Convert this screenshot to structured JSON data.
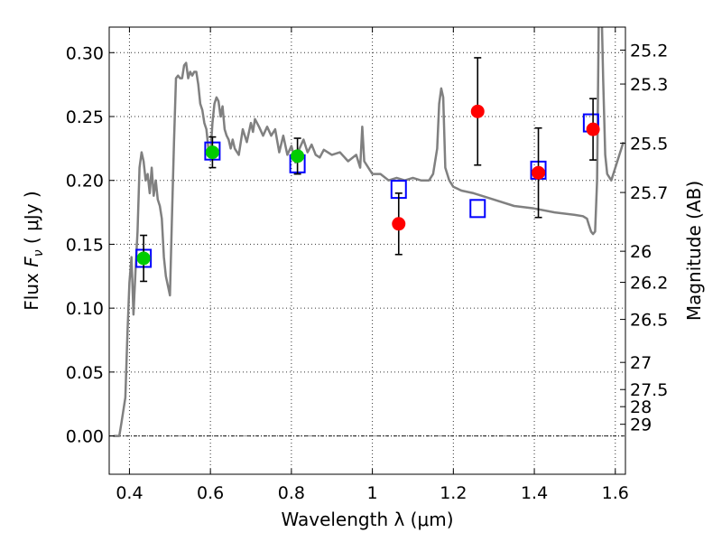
{
  "chart_data": {
    "type": "scatter",
    "xlabel": "Wavelength  λ (μm)",
    "ylabel_prefix": "Flux  ",
    "ylabel_symbol": "F",
    "ylabel_sub": "ν",
    "ylabel_suffix": "  ( μJy )",
    "y2label": "Magnitude (AB)",
    "xlim": [
      0.35,
      1.625
    ],
    "ylim": [
      -0.03,
      0.32
    ],
    "grid": true,
    "x_ticks": [
      {
        "value": 0.4,
        "label": "0.4"
      },
      {
        "value": 0.6,
        "label": "0.6"
      },
      {
        "value": 0.8,
        "label": "0.8"
      },
      {
        "value": 1.0,
        "label": "1"
      },
      {
        "value": 1.2,
        "label": "1.2"
      },
      {
        "value": 1.4,
        "label": "1.4"
      },
      {
        "value": 1.6,
        "label": "1.6"
      }
    ],
    "y_ticks": [
      {
        "value": 0.0,
        "label": "0.00"
      },
      {
        "value": 0.05,
        "label": "0.05"
      },
      {
        "value": 0.1,
        "label": "0.10"
      },
      {
        "value": 0.15,
        "label": "0.15"
      },
      {
        "value": 0.2,
        "label": "0.20"
      },
      {
        "value": 0.25,
        "label": "0.25"
      },
      {
        "value": 0.3,
        "label": "0.30"
      }
    ],
    "mag_ticks": [
      {
        "value": 25.2,
        "label": "25.2"
      },
      {
        "value": 25.3,
        "label": "25.3"
      },
      {
        "value": 25.5,
        "label": "25.5"
      },
      {
        "value": 25.7,
        "label": "25.7"
      },
      {
        "value": 26.0,
        "label": "26"
      },
      {
        "value": 26.2,
        "label": "26.2"
      },
      {
        "value": 26.5,
        "label": "26.5"
      },
      {
        "value": 27.0,
        "label": "27"
      },
      {
        "value": 27.5,
        "label": "27.5"
      },
      {
        "value": 28.0,
        "label": "28"
      },
      {
        "value": 29.0,
        "label": "29"
      }
    ],
    "series": [
      {
        "kind": "line",
        "color": "#808080",
        "x": [
          0.36,
          0.375,
          0.38,
          0.39,
          0.395,
          0.4,
          0.405,
          0.41,
          0.415,
          0.42,
          0.425,
          0.43,
          0.435,
          0.44,
          0.445,
          0.45,
          0.455,
          0.46,
          0.465,
          0.47,
          0.475,
          0.48,
          0.485,
          0.49,
          0.5,
          0.505,
          0.51,
          0.515,
          0.52,
          0.525,
          0.53,
          0.535,
          0.54,
          0.545,
          0.55,
          0.555,
          0.56,
          0.565,
          0.57,
          0.575,
          0.58,
          0.585,
          0.59,
          0.595,
          0.6,
          0.605,
          0.61,
          0.615,
          0.62,
          0.625,
          0.63,
          0.635,
          0.64,
          0.645,
          0.65,
          0.655,
          0.66,
          0.67,
          0.68,
          0.69,
          0.7,
          0.705,
          0.71,
          0.72,
          0.73,
          0.74,
          0.75,
          0.76,
          0.77,
          0.78,
          0.79,
          0.8,
          0.81,
          0.82,
          0.83,
          0.84,
          0.85,
          0.86,
          0.87,
          0.88,
          0.9,
          0.92,
          0.94,
          0.96,
          0.97,
          0.975,
          0.98,
          0.99,
          1.0,
          1.02,
          1.04,
          1.06,
          1.08,
          1.1,
          1.12,
          1.14,
          1.15,
          1.16,
          1.165,
          1.17,
          1.175,
          1.18,
          1.19,
          1.2,
          1.22,
          1.25,
          1.3,
          1.35,
          1.4,
          1.45,
          1.5,
          1.52,
          1.53,
          1.535,
          1.54,
          1.545,
          1.55,
          1.555,
          1.56,
          1.565,
          1.57,
          1.575,
          1.58,
          1.59,
          1.6,
          1.61,
          1.62
        ],
        "y": [
          0.0,
          0.0,
          0.01,
          0.03,
          0.08,
          0.12,
          0.14,
          0.095,
          0.13,
          0.16,
          0.21,
          0.222,
          0.215,
          0.2,
          0.205,
          0.19,
          0.21,
          0.188,
          0.2,
          0.185,
          0.18,
          0.17,
          0.14,
          0.125,
          0.11,
          0.17,
          0.23,
          0.28,
          0.282,
          0.28,
          0.28,
          0.29,
          0.292,
          0.28,
          0.285,
          0.282,
          0.285,
          0.285,
          0.275,
          0.26,
          0.255,
          0.245,
          0.24,
          0.225,
          0.22,
          0.245,
          0.26,
          0.265,
          0.262,
          0.25,
          0.258,
          0.24,
          0.235,
          0.232,
          0.225,
          0.232,
          0.225,
          0.22,
          0.24,
          0.23,
          0.245,
          0.238,
          0.248,
          0.242,
          0.235,
          0.242,
          0.235,
          0.24,
          0.222,
          0.235,
          0.22,
          0.227,
          0.214,
          0.225,
          0.232,
          0.222,
          0.228,
          0.22,
          0.218,
          0.224,
          0.22,
          0.222,
          0.215,
          0.22,
          0.21,
          0.242,
          0.215,
          0.21,
          0.205,
          0.205,
          0.2,
          0.202,
          0.2,
          0.202,
          0.2,
          0.2,
          0.205,
          0.225,
          0.26,
          0.272,
          0.265,
          0.21,
          0.2,
          0.195,
          0.192,
          0.19,
          0.185,
          0.18,
          0.178,
          0.175,
          0.173,
          0.172,
          0.17,
          0.165,
          0.16,
          0.158,
          0.16,
          0.2,
          0.35,
          0.35,
          0.28,
          0.22,
          0.205,
          0.2,
          0.21,
          0.22,
          0.23
        ]
      },
      {
        "kind": "model-box",
        "name": "",
        "color": "#0000ff",
        "x": [
          0.435,
          0.605,
          0.815,
          1.065,
          1.26,
          1.41,
          1.54
        ],
        "y": [
          0.139,
          0.223,
          0.213,
          0.193,
          0.178,
          0.208,
          0.245
        ]
      },
      {
        "kind": "points",
        "name": "",
        "color": "#00cc00",
        "x": [
          0.435,
          0.605,
          0.815
        ],
        "y": [
          0.139,
          0.222,
          0.219
        ],
        "yerr": [
          0.018,
          0.012,
          0.014
        ]
      },
      {
        "kind": "points",
        "name": "",
        "color": "#ff0000",
        "x": [
          1.065,
          1.26,
          1.41,
          1.545
        ],
        "y": [
          0.166,
          0.254,
          0.206,
          0.24
        ],
        "yerr": [
          0.024,
          0.042,
          0.035,
          0.024
        ]
      }
    ]
  }
}
